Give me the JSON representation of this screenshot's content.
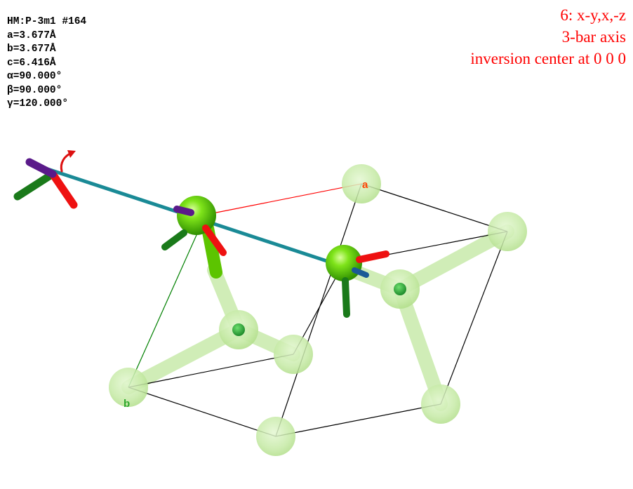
{
  "cell_info": {
    "space_group": "HM:P-3m1 #164",
    "a": "a=3.677Å",
    "b": "b=3.677Å",
    "c": "c=6.416Å",
    "alpha": "α=90.000°",
    "beta": "β=90.000°",
    "gamma": "γ=120.000°"
  },
  "symmetry_operation": {
    "operator": "6: x-y,x,-z",
    "element": "3-bar axis",
    "center": "inversion center at 0 0 0"
  },
  "axis_labels": {
    "a": "a",
    "b": "b"
  },
  "colors": {
    "symop_text": "#ff0000",
    "a_axis": "#ff0000",
    "b_axis": "#008000",
    "cell_edges": "#000000",
    "rotation_axis": "#1a8a96",
    "atom_selected": "#55d400",
    "atom_ghost": "#c8eba8",
    "x_arrow": "#ee1111",
    "y_arrow": "#1a7a1a",
    "z_arrow": "#5a1a8a"
  }
}
